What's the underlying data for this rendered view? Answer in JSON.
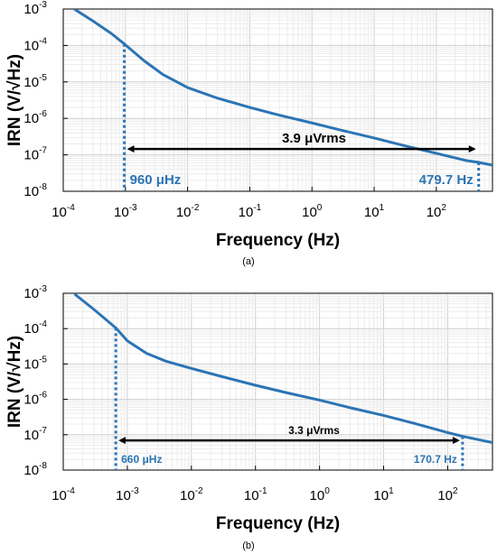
{
  "colors": {
    "series": "#2c74b4",
    "arrow": "#000000",
    "grid_major": "#cfcfcf",
    "grid_minor": "#ececec"
  },
  "chart_data": [
    {
      "type": "line",
      "caption": "(a)",
      "xlabel": "Frequency (Hz)",
      "ylabel": "IRN (V/√Hz)",
      "xscale": "log",
      "yscale": "log",
      "xlim": [
        0.0001,
        800
      ],
      "ylim": [
        1e-08,
        0.001
      ],
      "grid": true,
      "x_tick_labels": [
        "10-4",
        "10-3",
        "10-2",
        "10-1",
        "100",
        "101",
        "102"
      ],
      "y_tick_labels": [
        "10-8",
        "10-7",
        "10-6",
        "10-5",
        "10-4",
        "10-3"
      ],
      "series": [
        {
          "x": [
            0.00015,
            0.0003,
            0.0006,
            0.00096,
            0.002,
            0.004,
            0.01,
            0.03,
            0.1,
            0.3,
            1,
            3,
            10,
            30,
            100,
            300,
            479.7,
            800
          ],
          "y": [
            0.001,
            0.00047,
            0.00021,
            0.00011,
            3.8e-05,
            1.6e-05,
            7e-06,
            3.6e-06,
            2e-06,
            1.22e-06,
            7.5e-07,
            4.7e-07,
            2.9e-07,
            1.8e-07,
            1.1e-07,
            7e-08,
            6.2e-08,
            5.2e-08
          ]
        }
      ],
      "markers": [
        {
          "x": 0.00096,
          "label": "960 μHz"
        },
        {
          "x": 479.7,
          "label": "479.7 Hz"
        }
      ],
      "annotation": {
        "text": "3.9 μVrms",
        "y": 1.45e-07,
        "x_from": 0.00096,
        "x_to": 479.7
      }
    },
    {
      "type": "line",
      "caption": "(b)",
      "xlabel": "Frequency (Hz)",
      "ylabel": "IRN (V/√Hz)",
      "xscale": "log",
      "yscale": "log",
      "xlim": [
        0.0001,
        500
      ],
      "ylim": [
        1e-08,
        0.001
      ],
      "grid": true,
      "x_tick_labels": [
        "10-4",
        "10-3",
        "10-2",
        "10-1",
        "100",
        "101",
        "102"
      ],
      "y_tick_labels": [
        "10-8",
        "10-7",
        "10-6",
        "10-5",
        "10-4",
        "10-3"
      ],
      "series": [
        {
          "x": [
            0.00015,
            0.0003,
            0.00066,
            0.001,
            0.002,
            0.004,
            0.01,
            0.03,
            0.1,
            0.3,
            1,
            3,
            10,
            30,
            100,
            170.7,
            500
          ],
          "y": [
            0.00095,
            0.00035,
            0.000105,
            4.5e-05,
            2e-05,
            1.2e-05,
            7.5e-06,
            4.4e-06,
            2.5e-06,
            1.55e-06,
            9.5e-07,
            5.8e-07,
            3.5e-07,
            2.1e-07,
            1.15e-07,
            9e-08,
            6e-08
          ]
        }
      ],
      "markers": [
        {
          "x": 0.00066,
          "label": "660 μHz"
        },
        {
          "x": 170.7,
          "label": "170.7 Hz"
        }
      ],
      "annotation": {
        "text": "3.3 μVrms",
        "y": 6.9e-08,
        "x_from": 0.00066,
        "x_to": 170.7
      }
    }
  ]
}
